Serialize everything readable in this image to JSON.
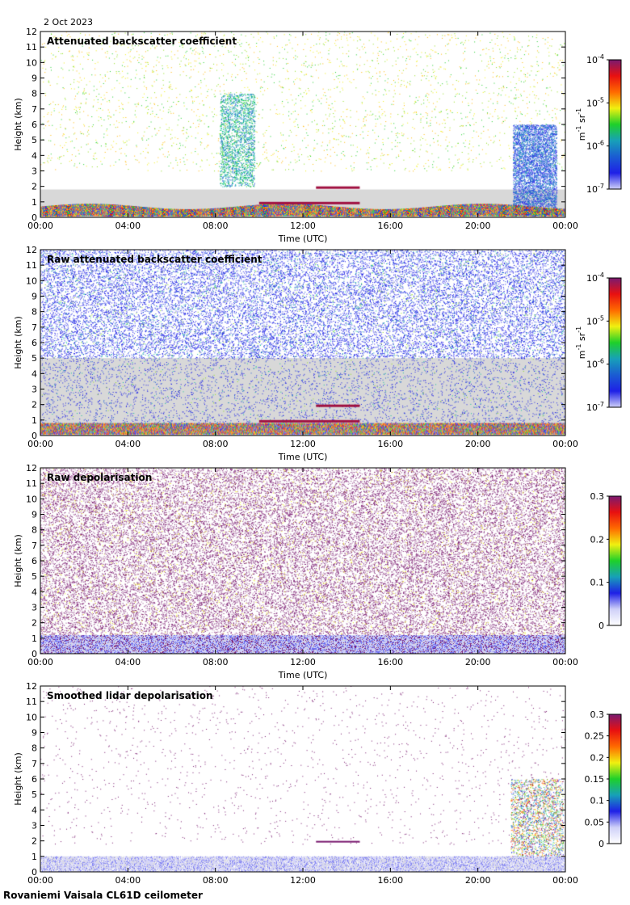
{
  "header": {
    "date": "2 Oct 2023"
  },
  "footer": {
    "instrument": "Rovaniemi Vaisala CL61D ceilometer"
  },
  "colors": {
    "frame": "#000000",
    "grid_none": "",
    "palette": [
      "#cfd0f8",
      "#6a6cf0",
      "#1e20e6",
      "#1a5cd2",
      "#17a0b8",
      "#12c29a",
      "#1ed02a",
      "#8fe018",
      "#f0f010",
      "#ffb800",
      "#ff6a00",
      "#e81010",
      "#a01040",
      "#7a1a70"
    ],
    "ground_grey": "#d8d8d8"
  },
  "chart_data": [
    {
      "type": "heatmap",
      "title": "Attenuated backscatter coefficient",
      "xlabel": "Time (UTC)",
      "ylabel": "Height (km)",
      "xticks": [
        "00:00",
        "04:00",
        "08:00",
        "12:00",
        "16:00",
        "20:00",
        "00:00"
      ],
      "yticks": [
        "0",
        "1",
        "2",
        "3",
        "4",
        "5",
        "6",
        "7",
        "8",
        "9",
        "10",
        "11",
        "12"
      ],
      "xlim_hours": [
        0,
        24
      ],
      "ylim_km": [
        0,
        12
      ],
      "colorbar": {
        "scale": "log",
        "range": [
          1e-07,
          0.0001
        ],
        "tick_values": [
          -7,
          -6,
          -5,
          -4
        ],
        "unit_main": "m",
        "unit_exp1": "-1",
        "unit_mid": " sr",
        "unit_exp2": "-1"
      },
      "layers": [
        {
          "name": "boundary layer",
          "t_start": 0,
          "t_end": 24,
          "h_base": 0.4,
          "h_top": 1.1
        },
        {
          "name": "cloud base layer",
          "t_start": 10,
          "t_end": 14.6,
          "h_base": 0.8,
          "h_top": 1.0
        },
        {
          "name": "elevated layer",
          "t_start": 12.6,
          "t_end": 14.6,
          "h_base": 1.8,
          "h_top": 2.0
        },
        {
          "name": "ice cloud",
          "t_start": 8.3,
          "t_end": 9.8,
          "h_base": 2.0,
          "h_top": 8.0
        },
        {
          "name": "precipitation",
          "t_start": 21.6,
          "t_end": 23.6,
          "h_base": 0.0,
          "h_top": 6.0
        }
      ]
    },
    {
      "type": "heatmap",
      "title": "Raw attenuated backscatter coefficient",
      "xlabel": "Time (UTC)",
      "ylabel": "Height (km)",
      "xticks": [
        "00:00",
        "04:00",
        "08:00",
        "12:00",
        "16:00",
        "20:00",
        "00:00"
      ],
      "yticks": [
        "0",
        "1",
        "2",
        "3",
        "4",
        "5",
        "6",
        "7",
        "8",
        "9",
        "10",
        "11",
        "12"
      ],
      "xlim_hours": [
        0,
        24
      ],
      "ylim_km": [
        0,
        12
      ],
      "colorbar": {
        "scale": "log",
        "range": [
          1e-07,
          0.0001
        ],
        "tick_values": [
          -7,
          -6,
          -5,
          -4
        ],
        "unit_main": "m",
        "unit_exp1": "-1",
        "unit_mid": " sr",
        "unit_exp2": "-1"
      }
    },
    {
      "type": "heatmap",
      "title": "Raw depolarisation",
      "xlabel": "Time (UTC)",
      "ylabel": "Height (km)",
      "xticks": [
        "00:00",
        "04:00",
        "08:00",
        "12:00",
        "16:00",
        "20:00",
        "00:00"
      ],
      "yticks": [
        "0",
        "1",
        "2",
        "3",
        "4",
        "5",
        "6",
        "7",
        "8",
        "9",
        "10",
        "11",
        "12"
      ],
      "xlim_hours": [
        0,
        24
      ],
      "ylim_km": [
        0,
        12
      ],
      "colorbar": {
        "scale": "linear",
        "range": [
          0,
          0.3
        ],
        "tick_labels": [
          "0",
          "0.1",
          "0.2",
          "0.3"
        ],
        "tick_values": [
          0,
          0.1,
          0.2,
          0.3
        ]
      }
    },
    {
      "type": "heatmap",
      "title": "Smoothed lidar depolarisation",
      "xlabel": "Time (UTC)",
      "ylabel": "Height (km)",
      "xticks": [
        "00:00",
        "04:00",
        "08:00",
        "12:00",
        "16:00",
        "20:00",
        "00:00"
      ],
      "yticks": [
        "0",
        "1",
        "2",
        "3",
        "4",
        "5",
        "6",
        "7",
        "8",
        "9",
        "10",
        "11",
        "12"
      ],
      "xlim_hours": [
        0,
        24
      ],
      "ylim_km": [
        0,
        12
      ],
      "colorbar": {
        "scale": "linear",
        "range": [
          0,
          0.3
        ],
        "tick_labels": [
          "0",
          "0.05",
          "0.1",
          "0.15",
          "0.2",
          "0.25",
          "0.3"
        ],
        "tick_values": [
          0,
          0.05,
          0.1,
          0.15,
          0.2,
          0.25,
          0.3
        ]
      }
    }
  ]
}
